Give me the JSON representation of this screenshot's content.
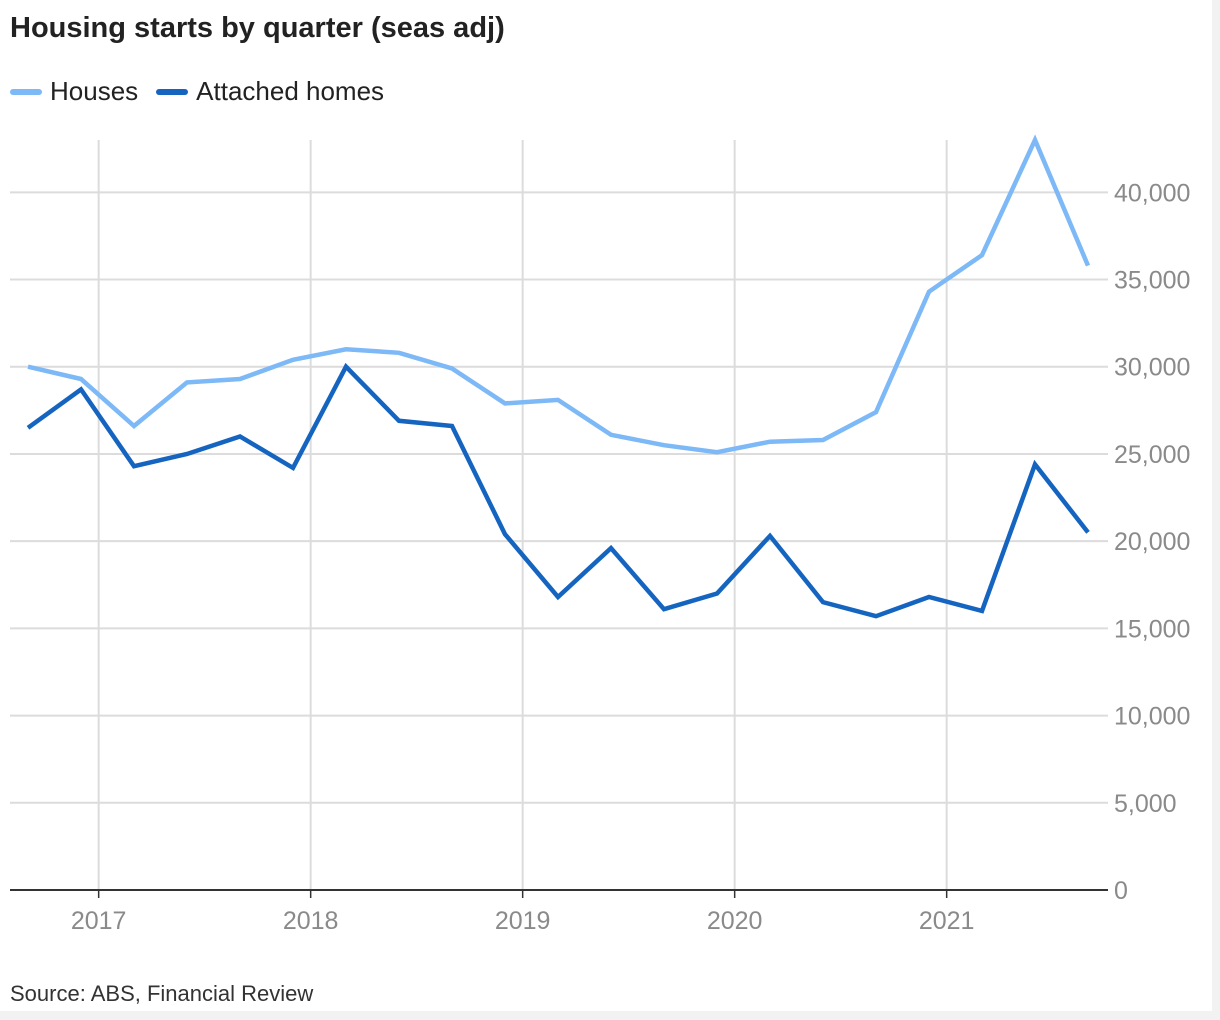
{
  "title": "Housing starts by quarter (seas adj)",
  "source": "Source: ABS, Financial Review",
  "colors": {
    "houses": "#7db8f7",
    "attached": "#1565c0",
    "grid": "#dcdcdc",
    "axis": "#333333",
    "tick_text": "#8a8a8a"
  },
  "chart_data": {
    "type": "line",
    "title": "Housing starts by quarter (seas adj)",
    "xlabel": "",
    "ylabel": "",
    "x": [
      "2016-09",
      "2016-12",
      "2017-03",
      "2017-06",
      "2017-09",
      "2017-12",
      "2018-03",
      "2018-06",
      "2018-09",
      "2018-12",
      "2019-03",
      "2019-06",
      "2019-09",
      "2019-12",
      "2020-03",
      "2020-06",
      "2020-09",
      "2020-12",
      "2021-03",
      "2021-06",
      "2021-09"
    ],
    "x_ticks": [
      {
        "label": "2017",
        "at": "2017-01"
      },
      {
        "label": "2018",
        "at": "2018-01"
      },
      {
        "label": "2019",
        "at": "2019-01"
      },
      {
        "label": "2020",
        "at": "2020-01"
      },
      {
        "label": "2021",
        "at": "2021-01"
      }
    ],
    "y_ticks": [
      {
        "value": 0,
        "label": "0"
      },
      {
        "value": 5000,
        "label": "5,000"
      },
      {
        "value": 10000,
        "label": "10,000"
      },
      {
        "value": 15000,
        "label": "15,000"
      },
      {
        "value": 20000,
        "label": "20,000"
      },
      {
        "value": 25000,
        "label": "25,000"
      },
      {
        "value": 30000,
        "label": "30,000"
      },
      {
        "value": 35000,
        "label": "35,000"
      },
      {
        "value": 40000,
        "label": "40,000"
      }
    ],
    "ylim": [
      0,
      43000
    ],
    "grid": true,
    "y_axis_side": "right",
    "legend_position": "top-left",
    "series": [
      {
        "name": "Houses",
        "color": "#7db8f7",
        "values": [
          30000,
          29300,
          26600,
          29100,
          29300,
          30400,
          31000,
          30800,
          29900,
          27900,
          28100,
          26100,
          25500,
          25100,
          25700,
          25800,
          27400,
          34300,
          36400,
          43000,
          35800
        ]
      },
      {
        "name": "Attached homes",
        "color": "#1565c0",
        "values": [
          26500,
          28700,
          24300,
          25000,
          26000,
          24200,
          30000,
          26900,
          26600,
          20400,
          16800,
          19600,
          16100,
          17000,
          20300,
          16500,
          15700,
          16800,
          16000,
          24400,
          20500
        ]
      }
    ]
  }
}
